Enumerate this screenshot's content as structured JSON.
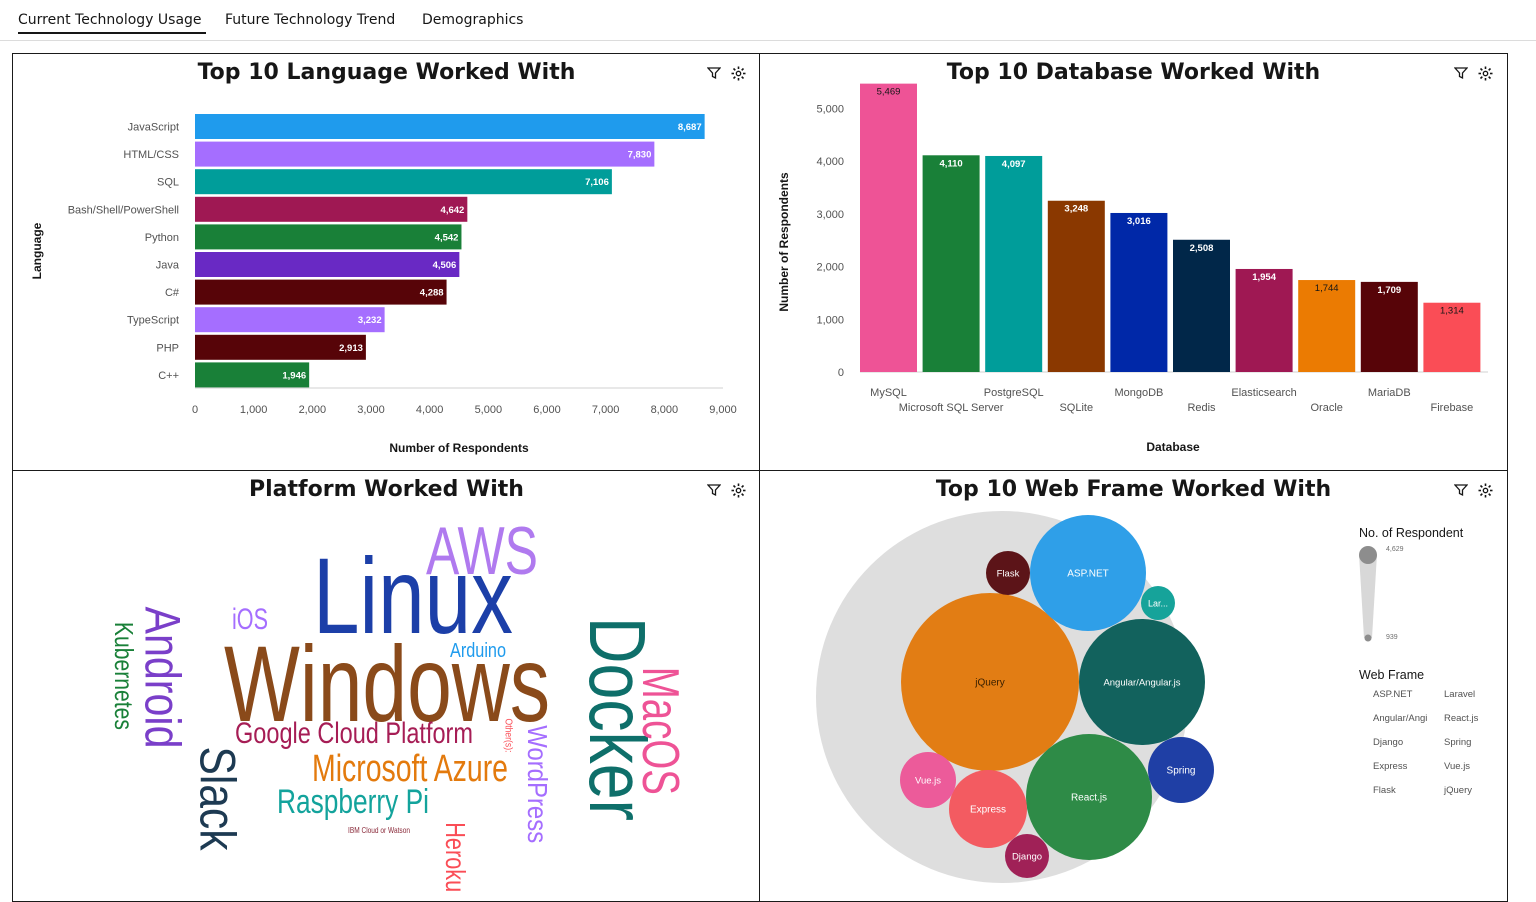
{
  "tabs": [
    {
      "label": "Current Technology Usage",
      "active": true
    },
    {
      "label": "Future Technology Trend",
      "active": false
    },
    {
      "label": "Demographics",
      "active": false
    }
  ],
  "icons": {
    "filter": "filter-icon",
    "settings": "settings-icon"
  },
  "languages": {
    "title": "Top 10 Language Worked With",
    "chart_data": {
      "type": "bar",
      "orientation": "horizontal",
      "title": "Top 10 Language Worked With",
      "xlabel": "Number of Respondents",
      "ylabel": "Language",
      "xlim": [
        0,
        9000
      ],
      "xticks": [
        "0",
        "1,000",
        "2,000",
        "3,000",
        "4,000",
        "5,000",
        "6,000",
        "7,000",
        "8,000",
        "9,000"
      ],
      "categories": [
        "JavaScript",
        "HTML/CSS",
        "SQL",
        "Bash/Shell/PowerShell",
        "Python",
        "Java",
        "C#",
        "TypeScript",
        "PHP",
        "C++"
      ],
      "values": [
        8687,
        7830,
        7106,
        4642,
        4542,
        4506,
        4288,
        3232,
        2913,
        1946
      ],
      "value_labels": [
        "8,687",
        "7,830",
        "7,106",
        "4,642",
        "4,542",
        "4,506",
        "4,288",
        "3,232",
        "2,913",
        "1,946"
      ],
      "colors": [
        "#1f9bed",
        "#a56eff",
        "#009d9a",
        "#9f1853",
        "#198038",
        "#6929c4",
        "#570408",
        "#a56eff",
        "#570408",
        "#198038"
      ]
    }
  },
  "databases": {
    "title": "Top 10 Database Worked With",
    "chart_data": {
      "type": "bar",
      "orientation": "vertical",
      "title": "Top 10 Database Worked With",
      "xlabel": "Database",
      "ylabel": "Number of Respondents",
      "ylim": [
        0,
        5500
      ],
      "yticks": [
        "0",
        "1,000",
        "2,000",
        "3,000",
        "4,000",
        "5,000"
      ],
      "categories": [
        "MySQL",
        "Microsoft SQL Server",
        "PostgreSQL",
        "SQLite",
        "MongoDB",
        "Redis",
        "Elasticsearch",
        "Oracle",
        "MariaDB",
        "Firebase"
      ],
      "values": [
        5469,
        4110,
        4097,
        3248,
        3016,
        2508,
        1954,
        1744,
        1709,
        1314
      ],
      "value_labels": [
        "5,469",
        "4,110",
        "4,097",
        "3,248",
        "3,016",
        "2,508",
        "1,954",
        "1,744",
        "1,709",
        "1,314"
      ],
      "colors": [
        "#ee5396",
        "#198038",
        "#009d9a",
        "#8a3800",
        "#0028a8",
        "#012749",
        "#9f1853",
        "#eb7b02",
        "#570408",
        "#fa4d56"
      ]
    }
  },
  "platforms": {
    "title": "Platform Worked With",
    "chart_data": {
      "type": "wordcloud",
      "words": [
        {
          "text": "Linux",
          "color": "#1c3fa8"
        },
        {
          "text": "Windows",
          "color": "#8a4a1a"
        },
        {
          "text": "AWS",
          "color": "#b07aef"
        },
        {
          "text": "Docker",
          "color": "#0e6f6a"
        },
        {
          "text": "Android",
          "color": "#7a3fc9"
        },
        {
          "text": "MacOS",
          "color": "#ee5396"
        },
        {
          "text": "Google Cloud Platform",
          "color": "#a61d55"
        },
        {
          "text": "Microsoft Azure",
          "color": "#e37a0d"
        },
        {
          "text": "Raspberry Pi",
          "color": "#13a39c"
        },
        {
          "text": "Slack",
          "color": "#1d3a52"
        },
        {
          "text": "Kubernetes",
          "color": "#198038"
        },
        {
          "text": "WordPress",
          "color": "#a56eff"
        },
        {
          "text": "Heroku",
          "color": "#fa4d56"
        },
        {
          "text": "iOS",
          "color": "#a56eff"
        },
        {
          "text": "Arduino",
          "color": "#1f9bed"
        },
        {
          "text": "Other(s):",
          "color": "#fa4d56"
        },
        {
          "text": "IBM Cloud or Watson",
          "color": "#8a2a3a"
        }
      ]
    }
  },
  "webframes": {
    "title": "Top 10 Web Frame Worked With",
    "legend_size_title": "No. of Respondent",
    "legend_size_max": "4,629",
    "legend_size_min": "939",
    "legend_title": "Web Frame",
    "chart_data": {
      "type": "bubble",
      "title": "Top 10 Web Frame Worked With",
      "size_range": [
        939,
        4629
      ],
      "bubbles": [
        {
          "label": "jQuery",
          "color": "#e27d14"
        },
        {
          "label": "ASP.NET",
          "color": "#2f9fe8"
        },
        {
          "label": "Angular/Angular.js",
          "color": "#12625d"
        },
        {
          "label": "React.js",
          "color": "#2e8b47"
        },
        {
          "label": "Spring",
          "color": "#1f3fa5"
        },
        {
          "label": "Express",
          "color": "#f35b61"
        },
        {
          "label": "Vue.js",
          "color": "#ec5b9a"
        },
        {
          "label": "Flask",
          "color": "#5c1418"
        },
        {
          "label": "Django",
          "color": "#a02157"
        },
        {
          "label": "Lar...",
          "color": "#16a39a"
        }
      ],
      "legend_items": [
        "ASP.NET",
        "Laravel",
        "Angular/Angi",
        "React.js",
        "Django",
        "Spring",
        "Express",
        "Vue.js",
        "Flask",
        "jQuery"
      ]
    }
  }
}
